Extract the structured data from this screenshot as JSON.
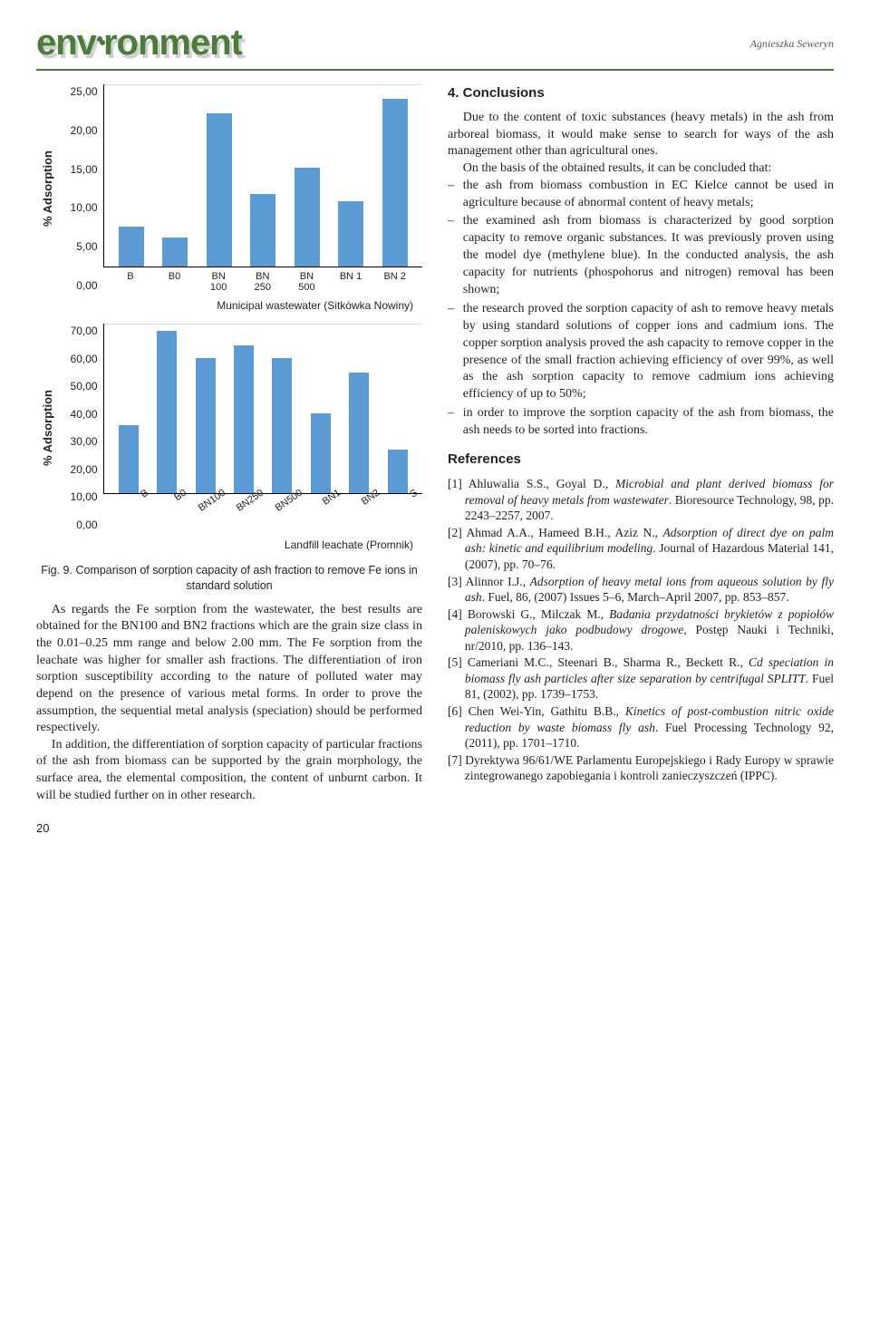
{
  "header": {
    "logo_text": "environment",
    "byline": "Agnieszka Seweryn"
  },
  "chart1": {
    "type": "bar",
    "y_label": "% Adsorption",
    "y_ticks": [
      "25,00",
      "20,00",
      "15,00",
      "10,00",
      "5,00",
      "0,00"
    ],
    "y_max": 25,
    "bars": [
      {
        "label_top": "B",
        "label_bot": "",
        "value": 5.5
      },
      {
        "label_top": "B0",
        "label_bot": "",
        "value": 4.0
      },
      {
        "label_top": "BN",
        "label_bot": "100",
        "value": 21.0
      },
      {
        "label_top": "BN",
        "label_bot": "250",
        "value": 10.0
      },
      {
        "label_top": "BN",
        "label_bot": "500",
        "value": 13.5
      },
      {
        "label_top": "BN 1",
        "label_bot": "",
        "value": 9.0
      },
      {
        "label_top": "BN 2",
        "label_bot": "",
        "value": 23.0
      }
    ],
    "bar_color": "#5b9bd5",
    "caption": "Municipal wastewater (Sitkówka Nowiny)"
  },
  "chart2": {
    "type": "bar",
    "y_label": "% Adsorption",
    "y_ticks": [
      "70,00",
      "60,00",
      "50,00",
      "40,00",
      "30,00",
      "20,00",
      "10,00",
      "0,00"
    ],
    "y_max": 70,
    "bars": [
      {
        "label": "B",
        "value": 28
      },
      {
        "label": "B0",
        "value": 67
      },
      {
        "label": "BN100",
        "value": 56
      },
      {
        "label": "BN250",
        "value": 61
      },
      {
        "label": "BN500",
        "value": 56
      },
      {
        "label": "BN1",
        "value": 33
      },
      {
        "label": "BN2",
        "value": 50
      },
      {
        "label": "S",
        "value": 18
      }
    ],
    "bar_color": "#5b9bd5",
    "caption": "Landfill leachate (Promnik)"
  },
  "figure_caption": "Fig. 9. Comparison of sorption capacity of ash fraction to remove Fe ions in standard solution",
  "left_paragraphs": [
    "As regards the Fe sorption from the wastewater, the best results are obtained for the BN100 and BN2 fractions which are the grain size class in the 0.01–0.25 mm range and below 2.00 mm. The Fe sorption from the leachate was higher for smaller ash fractions. The differentiation of iron sorption susceptibility according to the nature of polluted water may depend on the presence of various metal forms. In order to prove the assumption, the sequential metal analysis (speciation) should be performed respectively.",
    "In addition, the differentiation of sorption capacity of particular fractions of the ash from biomass can be supported by the grain morphology, the surface area, the elemental composition, the content of unburnt carbon. It will be studied further on in other research."
  ],
  "right": {
    "conclusions_heading": "4. Conclusions",
    "conclusions_intro": "Due to the content of toxic substances (heavy metals) in the ash from arboreal biomass, it would make sense to search for ways of the ash management other than agricultural ones.",
    "conclusions_lead": "On the basis of the obtained results, it can be concluded that:",
    "conclusions_bullets": [
      "the ash from biomass combustion in EC Kielce cannot be used in agriculture because of abnormal content of heavy metals;",
      "the examined ash from biomass is characterized by good sorption capacity to remove organic substances. It was previously proven using the model dye (methylene blue). In the conducted analysis, the ash capacity for nutrients (phospohorus and nitrogen) removal has been shown;",
      "the research proved the sorption capacity of ash to remove heavy metals by using standard solutions of copper ions and cadmium ions. The copper sorption analysis proved the ash capacity to remove copper in the presence of the small fraction achieving efficiency of over 99%, as well as the ash sorption capacity to remove cadmium ions achieving efficiency of up to 50%;",
      "in order to improve the sorption capacity of the ash from biomass, the ash needs to be sorted into fractions."
    ],
    "references_heading": "References",
    "references": [
      {
        "num": "[1]",
        "text": "Ahluwalia S.S., Goyal D., <em>Microbial and plant derived biomass for removal of heavy metals from wastewater</em>. Bioresource Technology, 98, pp. 2243–2257, 2007."
      },
      {
        "num": "[2]",
        "text": "Ahmad A.A., Hameed B.H., Aziz N., <em>Adsorption of direct dye on palm ash: kinetic and equilibrium modeling</em>. Journal of Hazardous Material 141, (2007), pp. 70–76."
      },
      {
        "num": "[3]",
        "text": "Alinnor I.J., <em>Adsorption of heavy metal ions from aqueous solution by fly ash</em>. Fuel, 86, (2007) Issues 5–6, March–April 2007, pp. 853–857."
      },
      {
        "num": "[4]",
        "text": "Borowski G., Milczak M., <em>Badania przydatności brykietów z popiołów paleniskowych jako podbudowy drogowe</em>, Postęp Nauki i Techniki, nr/2010, pp. 136–143."
      },
      {
        "num": "[5]",
        "text": "Cameriani M.C., Steenari B., Sharma R., Beckett R., <em>Cd speciation in biomass fly ash particles after size separation by centrifugal SPLITT</em>. Fuel 81, (2002), pp. 1739–1753."
      },
      {
        "num": "[6]",
        "text": "Chen Wei-Yin, Gathitu B.B., <em>Kinetics of post-combustion nitric oxide reduction by waste biomass fly ash</em>. Fuel Processing Technology 92, (2011), pp. 1701–1710."
      },
      {
        "num": "[7]",
        "text": "Dyrektywa 96/61/WE Parlamentu Europejskiego i Rady Europy w sprawie zintegrowanego zapobiegania i kontroli zanieczyszczeń (IPPC)."
      }
    ]
  },
  "page_number": "20"
}
